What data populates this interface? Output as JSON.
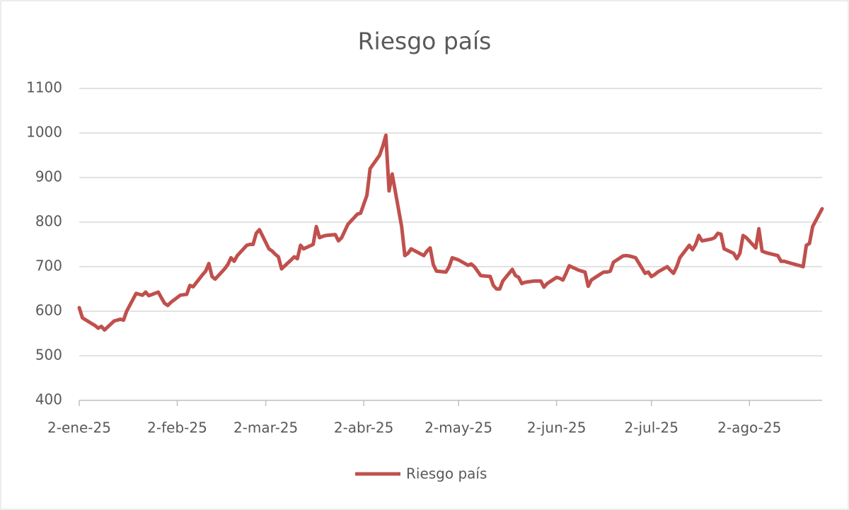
{
  "chart_data": {
    "type": "line",
    "title": "Riesgo país",
    "x": [
      "2025-01-02",
      "2025-01-03",
      "2025-01-06",
      "2025-01-07",
      "2025-01-08",
      "2025-01-09",
      "2025-01-10",
      "2025-01-13",
      "2025-01-14",
      "2025-01-15",
      "2025-01-16",
      "2025-01-17",
      "2025-01-20",
      "2025-01-21",
      "2025-01-22",
      "2025-01-23",
      "2025-01-24",
      "2025-01-27",
      "2025-01-28",
      "2025-01-29",
      "2025-01-30",
      "2025-01-31",
      "2025-02-03",
      "2025-02-04",
      "2025-02-05",
      "2025-02-06",
      "2025-02-07",
      "2025-02-10",
      "2025-02-11",
      "2025-02-12",
      "2025-02-13",
      "2025-02-14",
      "2025-02-17",
      "2025-02-18",
      "2025-02-19",
      "2025-02-20",
      "2025-02-21",
      "2025-02-24",
      "2025-02-25",
      "2025-02-26",
      "2025-02-27",
      "2025-02-28",
      "2025-03-03",
      "2025-03-04",
      "2025-03-05",
      "2025-03-06",
      "2025-03-07",
      "2025-03-10",
      "2025-03-11",
      "2025-03-12",
      "2025-03-13",
      "2025-03-14",
      "2025-03-17",
      "2025-03-18",
      "2025-03-19",
      "2025-03-20",
      "2025-03-21",
      "2025-03-24",
      "2025-03-25",
      "2025-03-26",
      "2025-03-27",
      "2025-03-28",
      "2025-03-31",
      "2025-04-01",
      "2025-04-02",
      "2025-04-03",
      "2025-04-04",
      "2025-04-07",
      "2025-04-08",
      "2025-04-09",
      "2025-04-10",
      "2025-04-11",
      "2025-04-14",
      "2025-04-15",
      "2025-04-16",
      "2025-04-17",
      "2025-04-21",
      "2025-04-22",
      "2025-04-23",
      "2025-04-24",
      "2025-04-25",
      "2025-04-28",
      "2025-04-29",
      "2025-04-30",
      "2025-05-02",
      "2025-05-05",
      "2025-05-06",
      "2025-05-07",
      "2025-05-08",
      "2025-05-09",
      "2025-05-12",
      "2025-05-13",
      "2025-05-14",
      "2025-05-15",
      "2025-05-16",
      "2025-05-19",
      "2025-05-20",
      "2025-05-21",
      "2025-05-22",
      "2025-05-23",
      "2025-05-26",
      "2025-05-27",
      "2025-05-28",
      "2025-05-29",
      "2025-05-30",
      "2025-06-02",
      "2025-06-03",
      "2025-06-04",
      "2025-06-05",
      "2025-06-06",
      "2025-06-09",
      "2025-06-10",
      "2025-06-11",
      "2025-06-12",
      "2025-06-13",
      "2025-06-16",
      "2025-06-17",
      "2025-06-18",
      "2025-06-19",
      "2025-06-20",
      "2025-06-23",
      "2025-06-24",
      "2025-06-25",
      "2025-06-26",
      "2025-06-27",
      "2025-06-30",
      "2025-07-01",
      "2025-07-02",
      "2025-07-03",
      "2025-07-04",
      "2025-07-07",
      "2025-07-08",
      "2025-07-09",
      "2025-07-10",
      "2025-07-11",
      "2025-07-14",
      "2025-07-15",
      "2025-07-16",
      "2025-07-17",
      "2025-07-18",
      "2025-07-21",
      "2025-07-22",
      "2025-07-23",
      "2025-07-24",
      "2025-07-25",
      "2025-07-28",
      "2025-07-29",
      "2025-07-30",
      "2025-07-31",
      "2025-08-01",
      "2025-08-04",
      "2025-08-05",
      "2025-08-06",
      "2025-08-07",
      "2025-08-08",
      "2025-08-11",
      "2025-08-12",
      "2025-08-13",
      "2025-08-14",
      "2025-08-15",
      "2025-08-18",
      "2025-08-19",
      "2025-08-20",
      "2025-08-21",
      "2025-08-22",
      "2025-08-25"
    ],
    "series": [
      {
        "name": "Riesgo país",
        "color": "#c0504d",
        "values": [
          608,
          585,
          572,
          568,
          562,
          566,
          558,
          578,
          580,
          582,
          580,
          600,
          640,
          638,
          636,
          643,
          635,
          643,
          630,
          618,
          613,
          620,
          636,
          637,
          638,
          658,
          655,
          682,
          690,
          707,
          678,
          672,
          695,
          705,
          720,
          712,
          725,
          748,
          750,
          750,
          775,
          783,
          740,
          735,
          728,
          722,
          695,
          715,
          722,
          718,
          748,
          740,
          750,
          790,
          765,
          768,
          770,
          772,
          758,
          765,
          780,
          795,
          818,
          820,
          840,
          860,
          920,
          950,
          970,
          995,
          870,
          908,
          790,
          725,
          730,
          740,
          725,
          735,
          742,
          705,
          690,
          688,
          700,
          720,
          715,
          703,
          706,
          700,
          690,
          680,
          678,
          658,
          650,
          650,
          668,
          694,
          680,
          676,
          662,
          665,
          668,
          668,
          668,
          654,
          662,
          676,
          674,
          670,
          685,
          702,
          692,
          690,
          688,
          656,
          670,
          684,
          688,
          688,
          690,
          710,
          724,
          725,
          724,
          722,
          720,
          685,
          688,
          678,
          682,
          688,
          700,
          692,
          685,
          700,
          720,
          748,
          738,
          750,
          770,
          758,
          762,
          765,
          775,
          773,
          740,
          730,
          718,
          730,
          770,
          765,
          742,
          785,
          735,
          732,
          730,
          725,
          712,
          712,
          710,
          708,
          702,
          700,
          748,
          752,
          790,
          830
        ]
      }
    ],
    "xlim": [
      "2025-01-02",
      "2025-08-25"
    ],
    "xticks": [
      {
        "value": "2025-01-02",
        "label": "2-ene-25"
      },
      {
        "value": "2025-02-02",
        "label": "2-feb-25"
      },
      {
        "value": "2025-03-02",
        "label": "2-mar-25"
      },
      {
        "value": "2025-04-02",
        "label": "2-abr-25"
      },
      {
        "value": "2025-05-02",
        "label": "2-may-25"
      },
      {
        "value": "2025-06-02",
        "label": "2-jun-25"
      },
      {
        "value": "2025-07-02",
        "label": "2-jul-25"
      },
      {
        "value": "2025-08-02",
        "label": "2-ago-25"
      }
    ],
    "ylim": [
      400,
      1100
    ],
    "yticks": [
      400,
      500,
      600,
      700,
      800,
      900,
      1000,
      1100
    ],
    "grid": true,
    "legend": "bottom"
  }
}
